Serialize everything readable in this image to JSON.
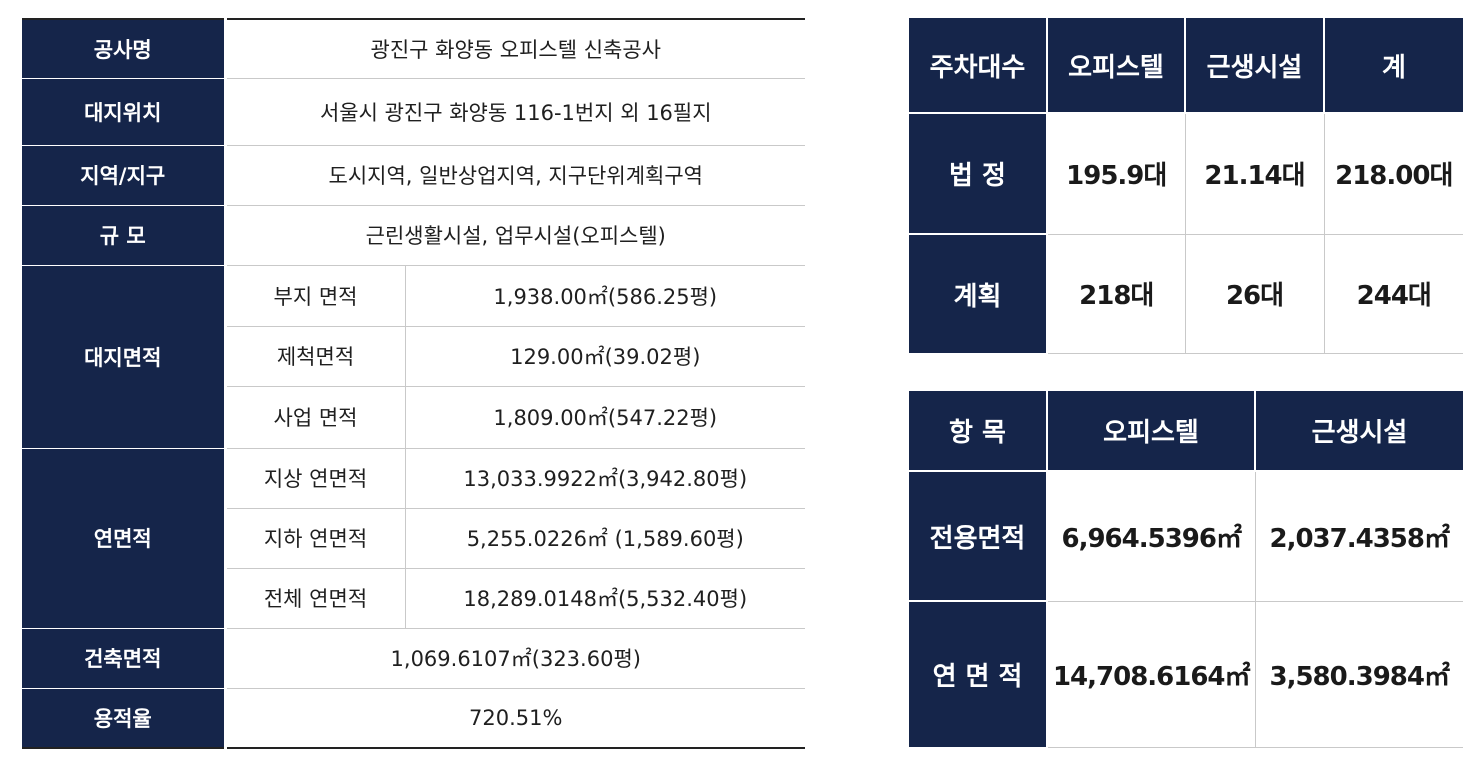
{
  "spec": {
    "project_name": {
      "label": "공사명",
      "value": "광진구 화양동 오피스텔 신축공사"
    },
    "location": {
      "label": "대지위치",
      "value": "서울시 광진구 화양동 116-1번지 외 16필지"
    },
    "zone": {
      "label": "지역/지구",
      "value": "도시지역, 일반상업지역, 지구단위계획구역"
    },
    "scale": {
      "label": "규 모",
      "value": "근린생활시설, 업무시설(오피스텔)"
    },
    "site_area": {
      "label": "대지면적",
      "rows": [
        {
          "label": "부지 면적",
          "value": "1,938.00㎡(586.25평)"
        },
        {
          "label": "제척면적",
          "value": "129.00㎡(39.02평)"
        },
        {
          "label": "사업 면적",
          "value": "1,809.00㎡(547.22평)"
        }
      ]
    },
    "floor_area": {
      "label": "연면적",
      "rows": [
        {
          "label": "지상 연면적",
          "value": "13,033.9922㎡(3,942.80평)"
        },
        {
          "label": "지하 연면적",
          "value": "5,255.0226㎡ (1,589.60평)"
        },
        {
          "label": "전체 연면적",
          "value": "18,289.0148㎡(5,532.40평)"
        }
      ]
    },
    "building_area": {
      "label": "건축면적",
      "value": "1,069.6107㎡(323.60평)"
    },
    "far": {
      "label": "용적율",
      "value": "720.51%"
    }
  },
  "parking": {
    "headers": [
      "주차대수",
      "오피스텔",
      "근생시설",
      "계"
    ],
    "rows": [
      {
        "label": "법 정",
        "values": [
          "195.9대",
          "21.14대",
          "218.00대"
        ]
      },
      {
        "label": "계획",
        "values": [
          "218대",
          "26대",
          "244대"
        ]
      }
    ]
  },
  "area": {
    "headers": [
      "항 목",
      "오피스텔",
      "근생시설"
    ],
    "rows": [
      {
        "label": "전용면적",
        "values": [
          "6,964.5396㎡",
          "2,037.4358㎡"
        ]
      },
      {
        "label": "연 면 적",
        "values": [
          "14,708.6164㎡",
          "3,580.3984㎡"
        ]
      }
    ]
  },
  "colors": {
    "header_bg": "#15254a",
    "header_text": "#ffffff"
  }
}
